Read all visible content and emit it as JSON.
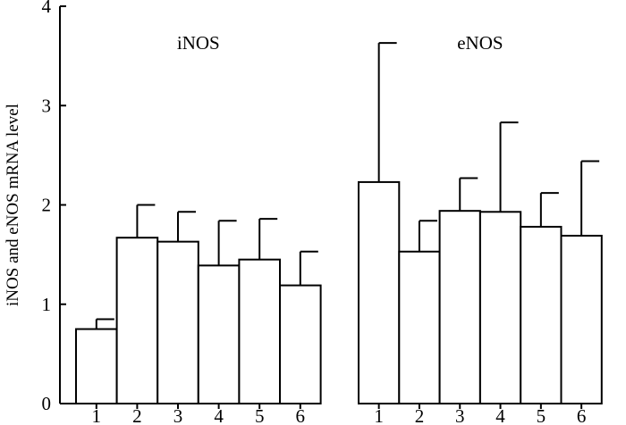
{
  "chart_data": {
    "type": "bar",
    "ylabel": "iNOS and eNOS mRNA level",
    "xlabel": "",
    "ylim": [
      0,
      4
    ],
    "yticks": [
      "0",
      "1",
      "2",
      "3",
      "4"
    ],
    "grid": false,
    "groups": [
      {
        "label": "iNOS",
        "categories": [
          "1",
          "2",
          "3",
          "4",
          "5",
          "6"
        ],
        "values": [
          0.75,
          1.67,
          1.63,
          1.39,
          1.45,
          1.19
        ],
        "error": [
          0.1,
          0.33,
          0.3,
          0.45,
          0.41,
          0.34
        ]
      },
      {
        "label": "eNOS",
        "categories": [
          "1",
          "2",
          "3",
          "4",
          "5",
          "6"
        ],
        "values": [
          2.23,
          1.53,
          1.94,
          1.93,
          1.78,
          1.69
        ],
        "error": [
          1.4,
          0.31,
          0.33,
          0.9,
          0.34,
          0.75
        ]
      }
    ]
  }
}
